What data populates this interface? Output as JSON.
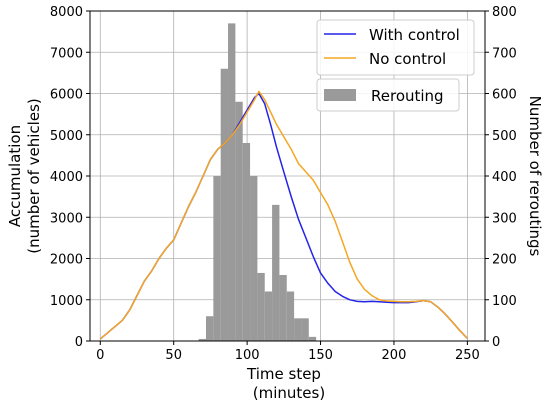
{
  "chart_data": {
    "type": "line",
    "xlabel": [
      "Time step",
      "(minutes)"
    ],
    "ylabel_left": [
      "Accumulation",
      "(number  of vehicles)"
    ],
    "ylabel_right": "Number of reroutings",
    "xlim": [
      -7,
      262
    ],
    "ylim_left": [
      0,
      8000
    ],
    "ylim_right": [
      0,
      800
    ],
    "x_ticks": [
      0,
      50,
      100,
      150,
      200,
      250
    ],
    "y_ticks_left": [
      0,
      1000,
      2000,
      3000,
      4000,
      5000,
      6000,
      7000,
      8000
    ],
    "y_ticks_right": [
      0,
      100,
      200,
      300,
      400,
      500,
      600,
      700,
      800
    ],
    "grid": true,
    "legend_lines": {
      "position": "top-right",
      "entries": [
        "With control",
        "No control"
      ]
    },
    "legend_bars": {
      "position": "upper-right",
      "entries": [
        "Rerouting"
      ]
    },
    "series": [
      {
        "name": "With control",
        "color": "#2424e8",
        "axis": "left",
        "x": [
          0,
          5,
          10,
          15,
          20,
          25,
          30,
          35,
          40,
          45,
          50,
          55,
          60,
          65,
          70,
          75,
          80,
          85,
          90,
          95,
          100,
          105,
          108,
          112,
          116,
          120,
          125,
          130,
          135,
          140,
          145,
          150,
          155,
          160,
          165,
          170,
          175,
          180,
          185,
          190,
          195,
          200,
          205,
          210,
          215,
          220,
          225,
          230,
          235,
          240,
          245,
          250
        ],
        "y": [
          50,
          200,
          350,
          500,
          750,
          1100,
          1450,
          1700,
          2000,
          2250,
          2450,
          2850,
          3250,
          3600,
          4000,
          4400,
          4650,
          4800,
          5000,
          5300,
          5600,
          5900,
          6000,
          5750,
          5250,
          4700,
          4100,
          3500,
          2950,
          2500,
          2050,
          1650,
          1400,
          1200,
          1080,
          1000,
          960,
          950,
          960,
          950,
          940,
          930,
          930,
          930,
          950,
          980,
          950,
          820,
          650,
          450,
          250,
          60
        ]
      },
      {
        "name": "No control",
        "color": "#f5a623",
        "axis": "left",
        "x": [
          0,
          5,
          10,
          15,
          20,
          25,
          30,
          35,
          40,
          45,
          50,
          55,
          60,
          65,
          70,
          75,
          80,
          85,
          90,
          95,
          100,
          105,
          108,
          112,
          116,
          120,
          125,
          130,
          135,
          140,
          145,
          150,
          155,
          160,
          165,
          170,
          175,
          180,
          185,
          190,
          195,
          200,
          205,
          210,
          215,
          220,
          225,
          230,
          235,
          240,
          245,
          250
        ],
        "y": [
          50,
          200,
          350,
          500,
          750,
          1100,
          1450,
          1700,
          2000,
          2250,
          2450,
          2850,
          3250,
          3600,
          4000,
          4400,
          4650,
          4800,
          5000,
          5250,
          5550,
          5850,
          6050,
          5850,
          5550,
          5250,
          4950,
          4650,
          4300,
          4100,
          3900,
          3600,
          3300,
          2900,
          2400,
          1900,
          1500,
          1250,
          1100,
          1000,
          970,
          960,
          950,
          950,
          960,
          980,
          950,
          820,
          650,
          450,
          250,
          60
        ]
      }
    ],
    "bars": {
      "name": "Rerouting",
      "color": "#9a9a9a",
      "axis": "right",
      "bin_width": 5,
      "bin_starts": [
        67,
        72,
        77,
        82,
        87,
        92,
        97,
        102,
        107,
        112,
        117,
        122,
        127,
        132,
        137,
        142,
        147
      ],
      "values": [
        5,
        60,
        400,
        660,
        770,
        580,
        480,
        400,
        165,
        120,
        330,
        160,
        120,
        55,
        55,
        10,
        0
      ]
    }
  }
}
